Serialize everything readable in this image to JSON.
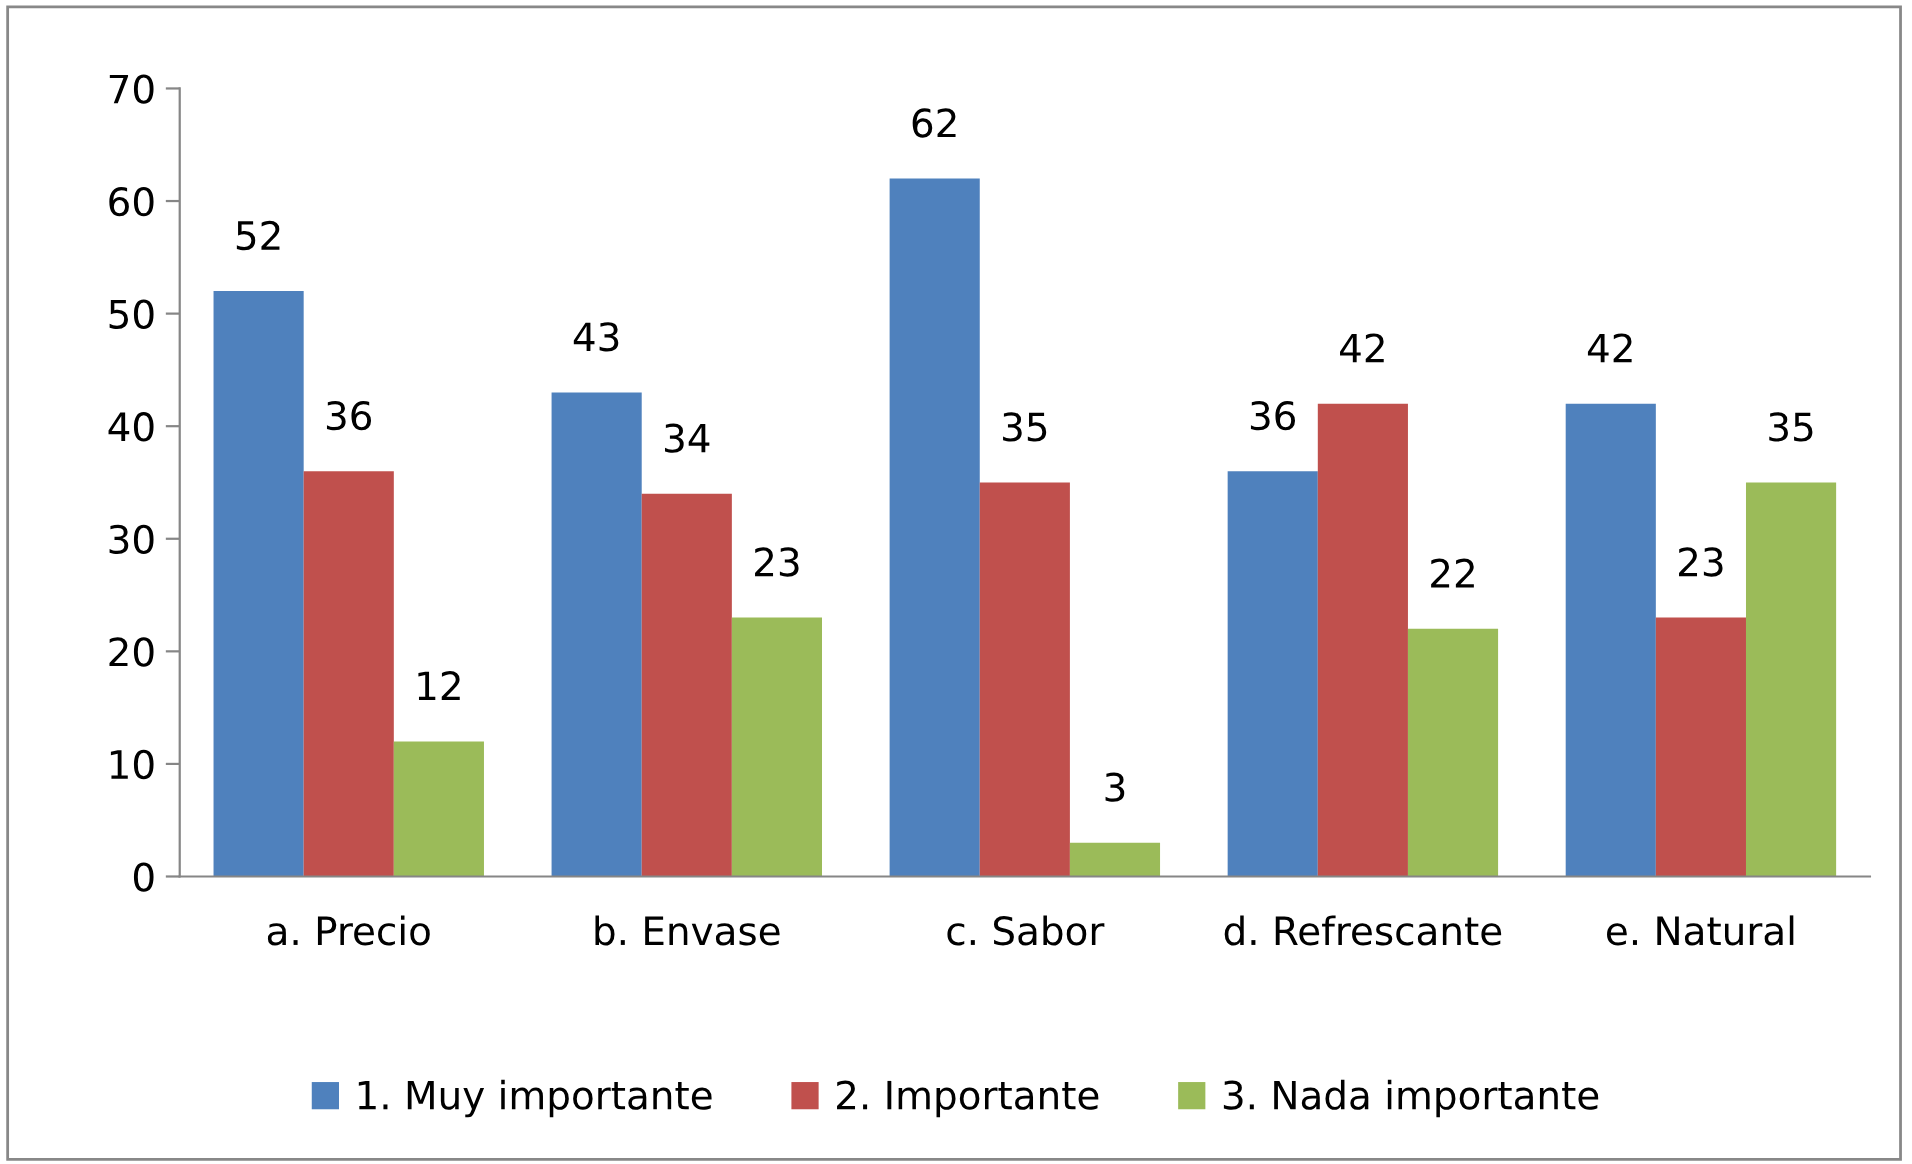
{
  "chart_data": {
    "type": "bar",
    "categories": [
      "a. Precio",
      "b. Envase",
      "c. Sabor",
      "d. Refrescante",
      "e. Natural"
    ],
    "series": [
      {
        "name": "1. Muy importante",
        "color": "#4f81bd",
        "values": [
          52,
          43,
          62,
          36,
          42
        ]
      },
      {
        "name": "2. Importante",
        "color": "#c0504d",
        "values": [
          36,
          34,
          35,
          42,
          23
        ]
      },
      {
        "name": "3. Nada importante",
        "color": "#9bbb59",
        "values": [
          12,
          23,
          3,
          22,
          35
        ]
      }
    ],
    "ylim": [
      0,
      70
    ],
    "yticks": [
      0,
      10,
      20,
      30,
      40,
      50,
      60,
      70
    ],
    "data_labels": true,
    "grid": false,
    "legend": "bottom"
  }
}
